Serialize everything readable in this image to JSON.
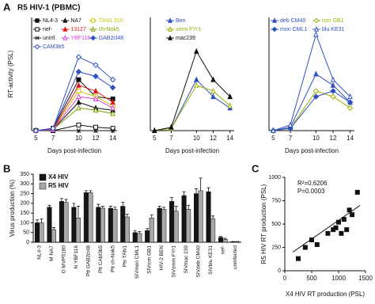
{
  "chart_data": [
    {
      "type": "line",
      "panel": "A",
      "title": "R5 HIV-1 (PBMC)",
      "y_label": "RT-activity (PSL)",
      "x_label": "Days post-infection",
      "x": [
        5,
        7,
        10,
        12,
        14
      ],
      "xlim": [
        4.5,
        14.5
      ],
      "xticks": [
        5,
        7,
        10,
        12,
        14
      ],
      "ylim": [
        0,
        100
      ],
      "legend_columns": 3,
      "series": [
        {
          "name": "NL4-3",
          "color": "#111111",
          "marker": "square",
          "open": false,
          "values": [
            0,
            2,
            45,
            30,
            28
          ]
        },
        {
          "name": "NA7",
          "color": "#111111",
          "marker": "triangle",
          "open": false,
          "values": [
            0,
            1,
            25,
            20,
            18
          ]
        },
        {
          "name": "TAN1.910",
          "color": "#c8c400",
          "marker": "square",
          "open": true,
          "values": [
            0,
            1,
            35,
            30,
            22
          ]
        },
        {
          "name": "nef-",
          "color": "#111111",
          "marker": "square",
          "open": true,
          "values": [
            0,
            0,
            5,
            3,
            2
          ]
        },
        {
          "name": "13127",
          "color": "#e01818",
          "marker": "triangle",
          "open": false,
          "values": [
            0,
            1,
            40,
            35,
            25
          ]
        },
        {
          "name": "ch-Nok5",
          "color": "#7aa000",
          "marker": "triangle",
          "open": true,
          "values": [
            0,
            1,
            20,
            18,
            15
          ]
        },
        {
          "name": "uninf.",
          "color": "#111111",
          "marker": "x",
          "open": false,
          "values": [
            0,
            0,
            0,
            0,
            0
          ]
        },
        {
          "name": "YBF116",
          "color": "#e040e0",
          "marker": "triangle",
          "open": true,
          "values": [
            0,
            1,
            30,
            28,
            20
          ]
        },
        {
          "name": "GAB2cl48",
          "color": "#3050c0",
          "marker": "diamond",
          "open": false,
          "values": [
            0,
            2,
            52,
            48,
            38
          ]
        },
        {
          "name": "CAM3b5",
          "color": "#3050c0",
          "marker": "diamond",
          "open": true,
          "values": [
            0,
            2,
            65,
            58,
            45
          ]
        }
      ]
    },
    {
      "type": "line",
      "x_label": "Days post-infection",
      "x": [
        5,
        7,
        10,
        12,
        14
      ],
      "xlim": [
        4.5,
        14.5
      ],
      "xticks": [
        5,
        7,
        10,
        12,
        14
      ],
      "ylim": [
        0,
        100
      ],
      "legend_columns": 1,
      "series": [
        {
          "name": "Ben",
          "color": "#3050c0",
          "marker": "triangle",
          "open": false,
          "values": [
            0,
            2,
            45,
            30,
            20
          ]
        },
        {
          "name": "smm FYr1",
          "color": "#9ab000",
          "marker": "triangle",
          "open": true,
          "values": [
            0,
            2,
            40,
            35,
            22
          ]
        },
        {
          "name": "mac239",
          "color": "#111111",
          "marker": "triangle",
          "open": false,
          "values": [
            0,
            3,
            70,
            45,
            30
          ]
        }
      ]
    },
    {
      "type": "line",
      "x_label": "Days post-infection",
      "x": [
        5,
        7,
        10,
        12,
        14
      ],
      "xlim": [
        4.5,
        14.5
      ],
      "xticks": [
        5,
        7,
        10,
        12,
        14
      ],
      "ylim": [
        0,
        100
      ],
      "legend_columns": 2,
      "series": [
        {
          "name": "deb CM40",
          "color": "#3050c0",
          "marker": "triangle",
          "open": false,
          "values": [
            0,
            3,
            50,
            40,
            25
          ]
        },
        {
          "name": "rcm GB1",
          "color": "#9ab000",
          "marker": "diamond",
          "open": true,
          "values": [
            0,
            2,
            35,
            30,
            20
          ]
        },
        {
          "name": "mon CML1",
          "color": "#3050c0",
          "marker": "diamond",
          "open": false,
          "values": [
            0,
            2,
            30,
            35,
            25
          ]
        },
        {
          "name": "blu KE31",
          "color": "#3050c0",
          "marker": "triangle",
          "open": true,
          "values": [
            0,
            5,
            85,
            45,
            30
          ]
        }
      ]
    },
    {
      "type": "bar",
      "panel": "B",
      "y_label": "Virus production (%)",
      "categories": [
        "NL4-3",
        "M NA7",
        "O MVP5180",
        "N YBF116",
        "Ptt GAB2cl48",
        "Ptt CAM3b5",
        "Ptt ch-Nok5",
        "Pts TAN1",
        "SIVmon CML1",
        "SIVrcm GB1",
        "HIV-2 BEN",
        "SIVsmm FYr1",
        "SIVmac 239",
        "SIVdeb CM40",
        "SIVblu KE31",
        "nef-",
        "uninfected"
      ],
      "ylim": [
        0,
        350
      ],
      "yticks": [
        0,
        50,
        100,
        150,
        200,
        250,
        300,
        350
      ],
      "series": [
        {
          "name": "X4 HIV",
          "color": "#151515",
          "values": [
            100,
            180,
            210,
            180,
            255,
            180,
            175,
            185,
            50,
            60,
            175,
            210,
            240,
            250,
            260,
            25,
            3
          ],
          "errors": [
            15,
            10,
            15,
            20,
            10,
            15,
            10,
            20,
            10,
            10,
            10,
            20,
            20,
            25,
            20,
            5,
            1
          ]
        },
        {
          "name": "R5 HIV",
          "color": "#a8a8a8",
          "values": [
            100,
            65,
            205,
            125,
            255,
            175,
            170,
            130,
            45,
            125,
            170,
            160,
            170,
            265,
            120,
            15,
            3
          ],
          "errors": [
            20,
            10,
            15,
            60,
            10,
            10,
            10,
            15,
            10,
            15,
            10,
            25,
            20,
            65,
            15,
            5,
            1
          ]
        }
      ]
    },
    {
      "type": "scatter",
      "panel": "C",
      "x_label": "X4 HIV RT production (PSL)",
      "y_label": "R5 HIV RT production (PSL)",
      "annotations": [
        "R²=0.6206",
        "P=0.0003"
      ],
      "xlim": [
        0,
        1500
      ],
      "xticks": [
        0,
        500,
        1000,
        1500
      ],
      "ylim": [
        0,
        1000
      ],
      "yticks": [
        0,
        250,
        500,
        750,
        1000
      ],
      "color": "#111111",
      "x": [
        250,
        380,
        500,
        600,
        800,
        900,
        950,
        1000,
        1050,
        1100,
        1150,
        1200,
        1250,
        1350
      ],
      "values": [
        130,
        250,
        330,
        280,
        400,
        440,
        460,
        520,
        400,
        550,
        440,
        650,
        600,
        840
      ],
      "fit_line": {
        "x": [
          150,
          1400
        ],
        "y": [
          200,
          700
        ]
      }
    }
  ]
}
